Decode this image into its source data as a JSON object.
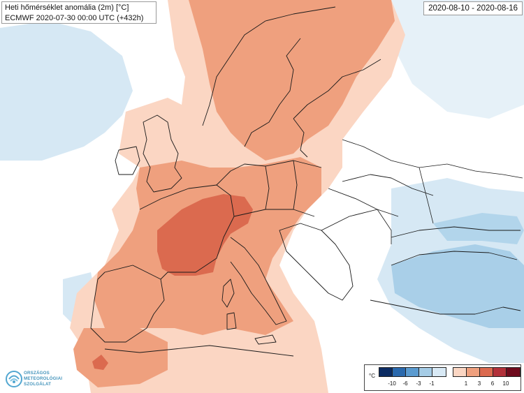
{
  "title": {
    "line1": "Heti hőmérséklet anomália (2m) [°C]",
    "line2": "ECMWF 2020-07-30 00:00 UTC (+432h)"
  },
  "date_range": "2020-08-10 - 2020-08-16",
  "logo": {
    "icon": "om-swirl-logo-icon",
    "lines": [
      "ORSZÁGOS",
      "METEOROLÓGIAI",
      "SZOLGÁLAT"
    ]
  },
  "legend": {
    "unit": "°C",
    "negative_labels": [
      "-10",
      "-6",
      "-3",
      "-1"
    ],
    "positive_labels": [
      "1",
      "3",
      "6",
      "10"
    ],
    "negative_colors": [
      "#0c2c63",
      "#2a69ad",
      "#5b9bd0",
      "#a5cce6",
      "#d8e9f5"
    ],
    "positive_colors": [
      "#fbd6c3",
      "#efa07e",
      "#db6a4f",
      "#b2313a",
      "#6e0b1d"
    ]
  },
  "colors": {
    "ocean_neutral": "#ffffff",
    "cold_light": "#d6e8f4",
    "cold_mid": "#a9cfe8",
    "warm_light": "#fbd6c3",
    "warm_mid": "#efa07e",
    "warm_strong": "#db6a4f",
    "border": "#1a1a1a"
  }
}
